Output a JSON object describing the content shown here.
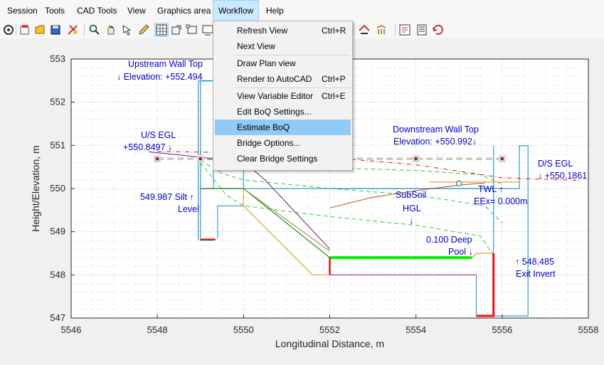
{
  "menubar": {
    "items": [
      {
        "label": "Session"
      },
      {
        "label": "Tools"
      },
      {
        "label": "CAD Tools"
      },
      {
        "label": "View"
      },
      {
        "label": "Graphics area"
      },
      {
        "label": "Workflow"
      },
      {
        "label": "Help"
      }
    ],
    "active_index": 5
  },
  "toolbar": {
    "icons": [
      "settings-icon",
      "new-session-icon",
      "open-icon",
      "save-icon",
      "tools-icon",
      "zoom-icon",
      "pan-icon",
      "select-icon",
      "pencil-icon",
      "grid-icon",
      "rectangle-icon",
      "box-icon",
      "screen-icon",
      "bridge-icon",
      "stream-icon",
      "estimate-icon",
      "flag-icon",
      "table-icon",
      "refresh-icon"
    ],
    "pressed": [
      9
    ]
  },
  "workflow_menu": {
    "groups": [
      [
        {
          "label": "Refresh View",
          "shortcut": "Ctrl+R"
        },
        {
          "label": "Next View",
          "shortcut": ""
        }
      ],
      [
        {
          "label": "Draw Plan view",
          "shortcut": ""
        },
        {
          "label": "Render to AutoCAD",
          "shortcut": "Ctrl+P"
        }
      ],
      [
        {
          "label": "View Variable Editor",
          "shortcut": "Ctrl+E"
        },
        {
          "label": "Edit BoQ Settings...",
          "shortcut": ""
        },
        {
          "label": "Estimate BoQ",
          "shortcut": "",
          "highlighted": true
        },
        {
          "label": "Bridge Options...",
          "shortcut": ""
        },
        {
          "label": "Clear Bridge Settings",
          "shortcut": ""
        }
      ]
    ]
  },
  "annotations": {
    "upstream_wall_top": "Upstream Wall Top",
    "upstream_wall_elev": "↓ Elevation: +552.494",
    "us_egl": "U/S EGL",
    "us_egl_value": "+550.8497  ↓",
    "silt_level_1": "549.987 Silt  ↑",
    "silt_level_2": "Level",
    "downstream_wall_top": "Downstream Wall Top",
    "downstream_wall_elev": "Elevation: +550.992↓",
    "ds_egl": "D/S EGL",
    "ds_egl_value": "↓  +550.1861",
    "subsoil_1": "SubSoil",
    "subsoil_2": "HGL",
    "subsoil_arrow": "↓",
    "twl_1": "TWL ↑",
    "twl_2": "EEx= 0.000m",
    "deep_pool_1": "0.100 Deep",
    "deep_pool_2": "Pool ↓",
    "exit_invert_1": "↑ 548.485",
    "exit_invert_2": "Exit Invert"
  },
  "colors": {
    "water_outline": "#2e9bd6",
    "egl": "#dd1111",
    "drawdown": "#33cc33",
    "bed": "#e0a030",
    "sloped_outline": "#2a8a2a",
    "purple": "#883399",
    "subsoil": "#b0501a",
    "tailwater": "#f09a30",
    "bright_green": "#00ee00",
    "annotation": "#0000cc"
  },
  "chart_data": {
    "type": "line",
    "xlabel": "Longitudinal Distance, m",
    "ylabel": "Height/Elevation, m",
    "xlim": [
      5546,
      5558
    ],
    "ylim": [
      547,
      553
    ],
    "xticks": [
      5546,
      5548,
      5550,
      5552,
      5554,
      5556,
      5558
    ],
    "yticks": [
      547,
      548,
      549,
      550,
      551,
      552,
      553
    ],
    "grid": true,
    "series": [
      {
        "role": "structure-outline",
        "color": "#2e9bd6",
        "dash": "",
        "width": 1.2,
        "x": [
          5549.3,
          5549.0,
          5549.0,
          5549.4,
          5549.4,
          5550.0,
          5550.0,
          5549.0,
          5549.0,
          5556.4,
          5556.4,
          5556.6,
          5556.6,
          5556.1,
          5556.1,
          5555.4
        ],
        "y": [
          548.8,
          548.8,
          552.5,
          552.5,
          552.5,
          552.5,
          550.0,
          550.0,
          550.0,
          550.0,
          550.99,
          550.99,
          547.05,
          547.05,
          547.05,
          547.05
        ]
      },
      {
        "role": "upstream-wall",
        "color": "#2e9bd6",
        "dash": "",
        "width": 1.2,
        "x": [
          5548.95,
          5548.95,
          5549.3,
          5549.3
        ],
        "y": [
          548.8,
          552.49,
          552.49,
          550.0
        ]
      },
      {
        "role": "downstream-wall",
        "color": "#2e9bd6",
        "dash": "",
        "width": 1.2,
        "x": [
          5552.0,
          5555.8,
          5555.8,
          5555.8
        ],
        "y": [
          550.0,
          550.0,
          550.99,
          547.05
        ]
      },
      {
        "role": "inner-step",
        "color": "#2e9bd6",
        "dash": "",
        "width": 1.2,
        "x": [
          5549.4,
          5549.4,
          5550.0
        ],
        "y": [
          548.85,
          549.6,
          549.6
        ]
      },
      {
        "role": "pool-wall",
        "color": "#2e9bd6",
        "dash": "",
        "width": 1.2,
        "x": [
          5555.4,
          5555.4
        ],
        "y": [
          548.0,
          547.05
        ]
      },
      {
        "role": "egl",
        "color": "#dd1111",
        "dash": "6,3,1,3",
        "width": 1,
        "x": [
          5548.0,
          5549.2,
          5550.0,
          5552.0,
          5554.0,
          5556.0,
          5557.8
        ],
        "y": [
          550.86,
          550.84,
          550.8,
          550.72,
          550.55,
          550.25,
          550.19
        ]
      },
      {
        "role": "water-surface-grey",
        "color": "#c8c8c8",
        "dash": "9,5",
        "width": 3.5,
        "x": [
          5548.0,
          5556.0
        ],
        "y": [
          550.69,
          550.69
        ]
      },
      {
        "role": "dashed-green-1",
        "color": "#33cc33",
        "dash": "6,4",
        "width": 1,
        "x": [
          5549.0,
          5550.0,
          5552.0,
          5554.0,
          5555.5,
          5556.0
        ],
        "y": [
          550.68,
          550.62,
          550.48,
          550.42,
          550.32,
          550.1
        ]
      },
      {
        "role": "dashed-green-2",
        "color": "#33cc33",
        "dash": "6,4",
        "width": 1,
        "x": [
          5549.0,
          5549.5,
          5550.0,
          5552.0,
          5554.0,
          5555.6,
          5556.0
        ],
        "y": [
          550.65,
          550.35,
          550.2,
          550.0,
          549.85,
          549.6,
          549.2
        ]
      },
      {
        "role": "dashed-green-3",
        "color": "#33cc33",
        "dash": "6,4",
        "width": 1,
        "x": [
          5549.0,
          5549.6,
          5550.0,
          5552.0,
          5554.0,
          5555.5,
          5555.8
        ],
        "y": [
          550.6,
          549.85,
          549.6,
          549.35,
          549.15,
          548.9,
          548.45
        ]
      },
      {
        "role": "bed-profile",
        "color": "#e0a030",
        "dash": "",
        "width": 1.2,
        "x": [
          5549.0,
          5550.0,
          5550.0,
          5551.6,
          5552.0
        ],
        "y": [
          550.0,
          550.0,
          549.6,
          548.0,
          548.0
        ]
      },
      {
        "role": "sloped-outline-green",
        "color": "#2a8a2a",
        "dash": "",
        "width": 1.2,
        "x": [
          5549.0,
          5550.0,
          5552.0
        ],
        "y": [
          550.0,
          550.0,
          548.4
        ]
      },
      {
        "role": "sloped-outline-olive",
        "color": "#9aa040",
        "dash": "",
        "width": 1.2,
        "x": [
          5550.0,
          5552.0
        ],
        "y": [
          550.0,
          548.55
        ]
      },
      {
        "role": "purple-profile",
        "color": "#883399",
        "dash": "",
        "width": 1.2,
        "x": [
          5547.8,
          5548.6,
          5549.3,
          5550.0,
          5550.5,
          5552.0
        ],
        "y": [
          550.85,
          550.77,
          550.69,
          550.62,
          550.2,
          548.6
        ]
      },
      {
        "role": "purple-bed",
        "color": "#883399",
        "dash": "",
        "width": 1.2,
        "x": [
          5552.0,
          5554.6,
          5555.4
        ],
        "y": [
          548.0,
          548.0,
          548.0
        ]
      },
      {
        "role": "subsoil-hgl",
        "color": "#b0501a",
        "dash": "",
        "width": 1,
        "x": [
          5552.0,
          5553.0,
          5554.0,
          5555.0,
          5555.6
        ],
        "y": [
          549.55,
          549.8,
          549.95,
          550.08,
          550.13
        ]
      },
      {
        "role": "tailwater",
        "color": "#f09a30",
        "dash": "",
        "width": 1.2,
        "x": [
          5554.3,
          5555.0,
          5556.4
        ],
        "y": [
          550.15,
          550.15,
          550.15
        ]
      },
      {
        "role": "pool-sill",
        "color": "#e0a030",
        "dash": "",
        "width": 1.2,
        "x": [
          5555.3,
          5555.4,
          5555.8
        ],
        "y": [
          548.4,
          548.5,
          548.5
        ]
      },
      {
        "role": "apron-green",
        "color": "#00ee00",
        "dash": "",
        "width": 4,
        "x": [
          5552.0,
          5555.3
        ],
        "y": [
          548.4,
          548.4
        ]
      },
      {
        "role": "red-step-left",
        "color": "#ee1111",
        "dash": "",
        "width": 2.5,
        "x": [
          5549.0,
          5549.35
        ],
        "y": [
          548.82,
          548.82
        ]
      },
      {
        "role": "red-step-center",
        "color": "#ee1111",
        "dash": "",
        "width": 2.5,
        "x": [
          5552.0,
          5552.0
        ],
        "y": [
          548.4,
          548.0
        ]
      },
      {
        "role": "red-pool",
        "color": "#ee1111",
        "dash": "",
        "width": 3,
        "x": [
          5555.4,
          5555.8,
          5555.8
        ],
        "y": [
          547.05,
          547.05,
          548.5
        ]
      }
    ],
    "markers": [
      {
        "x": 5548.0,
        "y": 550.69
      },
      {
        "x": 5549.0,
        "y": 550.69
      },
      {
        "x": 5554.0,
        "y": 550.69
      },
      {
        "x": 5556.0,
        "y": 550.69
      }
    ],
    "circle_marker": {
      "x": 5555.0,
      "y": 550.12
    }
  }
}
